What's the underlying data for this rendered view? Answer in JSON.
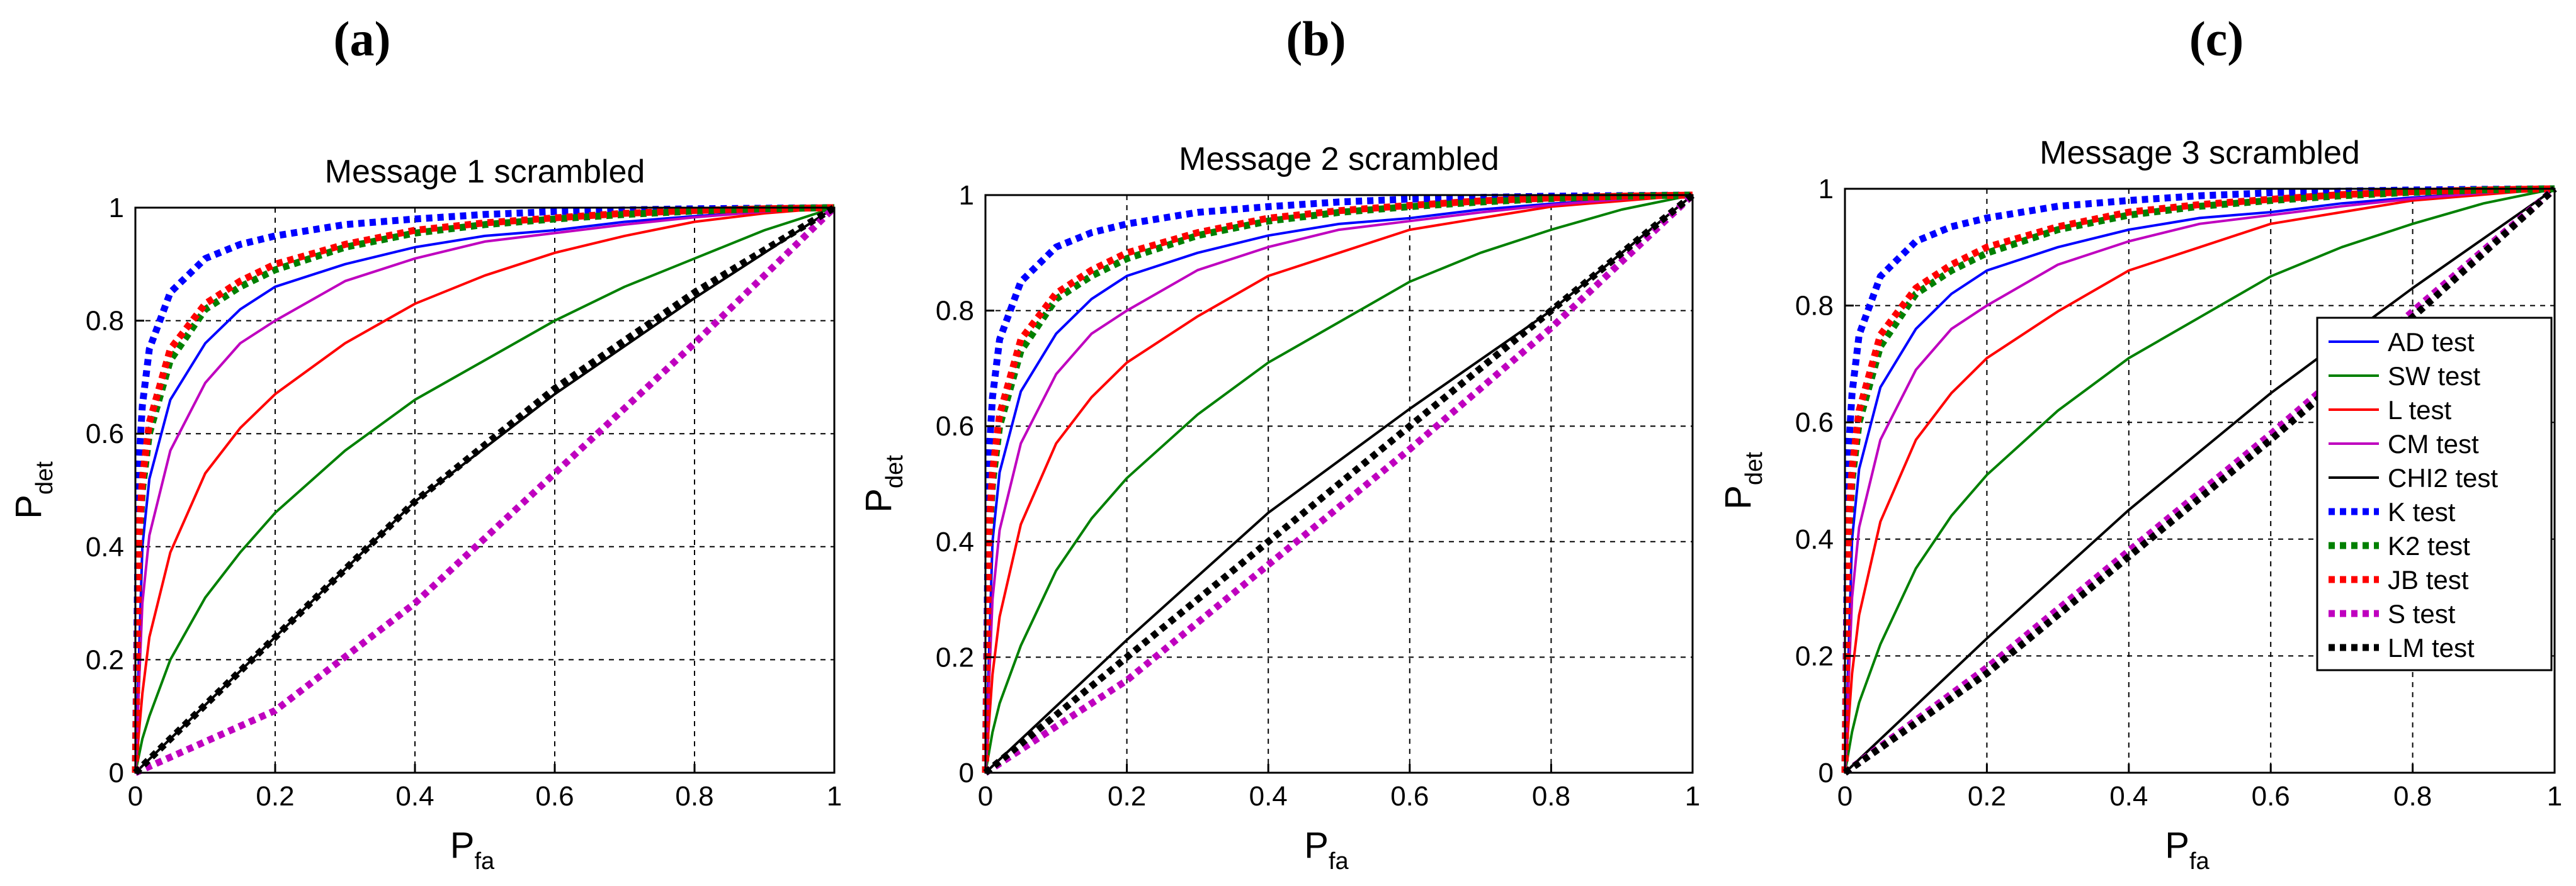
{
  "panel_labels": [
    "(a)",
    "(b)",
    "(c)"
  ],
  "chart_data": [
    {
      "type": "line",
      "title": "Message 1 scrambled",
      "xlabel": {
        "main": "P",
        "sub": "fa"
      },
      "ylabel": {
        "main": "P",
        "sub": "det"
      },
      "xlim": [
        0,
        1
      ],
      "ylim": [
        0,
        1
      ],
      "xticks": [
        "0",
        "0.2",
        "0.4",
        "0.6",
        "0.8",
        "1"
      ],
      "yticks": [
        "0",
        "0.2",
        "0.4",
        "0.6",
        "0.8",
        "1"
      ],
      "grid": true,
      "legend": null,
      "series": [
        {
          "name": "AD test",
          "color": "#0000ff",
          "dash": "solid",
          "x": [
            0,
            0.01,
            0.02,
            0.05,
            0.1,
            0.15,
            0.2,
            0.3,
            0.4,
            0.5,
            0.6,
            0.7,
            0.8,
            0.9,
            1
          ],
          "y": [
            0,
            0.4,
            0.52,
            0.66,
            0.76,
            0.82,
            0.86,
            0.9,
            0.93,
            0.95,
            0.96,
            0.975,
            0.985,
            0.993,
            1
          ]
        },
        {
          "name": "SW test",
          "color": "#008000",
          "dash": "solid",
          "x": [
            0,
            0.01,
            0.02,
            0.05,
            0.1,
            0.15,
            0.2,
            0.3,
            0.4,
            0.5,
            0.6,
            0.7,
            0.8,
            0.9,
            1
          ],
          "y": [
            0,
            0.06,
            0.1,
            0.2,
            0.31,
            0.39,
            0.46,
            0.57,
            0.66,
            0.73,
            0.8,
            0.86,
            0.91,
            0.96,
            1
          ]
        },
        {
          "name": "L test",
          "color": "#ff0000",
          "dash": "solid",
          "x": [
            0,
            0.01,
            0.02,
            0.05,
            0.1,
            0.15,
            0.2,
            0.3,
            0.4,
            0.5,
            0.6,
            0.7,
            0.8,
            0.9,
            1
          ],
          "y": [
            0,
            0.14,
            0.24,
            0.39,
            0.53,
            0.61,
            0.67,
            0.76,
            0.83,
            0.88,
            0.92,
            0.95,
            0.975,
            0.99,
            1
          ]
        },
        {
          "name": "CM test",
          "color": "#bf00bf",
          "dash": "solid",
          "x": [
            0,
            0.01,
            0.02,
            0.05,
            0.1,
            0.15,
            0.2,
            0.3,
            0.4,
            0.5,
            0.6,
            0.7,
            0.8,
            0.9,
            1
          ],
          "y": [
            0,
            0.3,
            0.42,
            0.57,
            0.69,
            0.76,
            0.8,
            0.87,
            0.91,
            0.94,
            0.955,
            0.97,
            0.983,
            0.993,
            1
          ]
        },
        {
          "name": "CHI2 test",
          "color": "#000000",
          "dash": "solid",
          "x": [
            0,
            0.2,
            0.4,
            0.6,
            0.8,
            1
          ],
          "y": [
            0,
            0.24,
            0.48,
            0.67,
            0.84,
            1
          ]
        },
        {
          "name": "K test",
          "color": "#0000ff",
          "dash": "dotted",
          "x": [
            0,
            0.005,
            0.01,
            0.02,
            0.05,
            0.1,
            0.15,
            0.2,
            0.3,
            0.4,
            0.5,
            0.6,
            0.7,
            0.8,
            0.9,
            1
          ],
          "y": [
            0,
            0.55,
            0.65,
            0.75,
            0.85,
            0.91,
            0.935,
            0.95,
            0.97,
            0.98,
            0.988,
            0.993,
            0.996,
            0.998,
            0.999,
            1
          ]
        },
        {
          "name": "K2 test",
          "color": "#008000",
          "dash": "dotted",
          "x": [
            0,
            0.005,
            0.01,
            0.02,
            0.05,
            0.1,
            0.15,
            0.2,
            0.3,
            0.4,
            0.5,
            0.6,
            0.7,
            0.8,
            0.9,
            1
          ],
          "y": [
            0,
            0.4,
            0.5,
            0.6,
            0.73,
            0.82,
            0.86,
            0.89,
            0.93,
            0.955,
            0.97,
            0.98,
            0.988,
            0.994,
            0.998,
            1
          ]
        },
        {
          "name": "JB test",
          "color": "#ff0000",
          "dash": "dotted",
          "x": [
            0,
            0.005,
            0.01,
            0.02,
            0.05,
            0.1,
            0.15,
            0.2,
            0.3,
            0.4,
            0.5,
            0.6,
            0.7,
            0.8,
            0.9,
            1
          ],
          "y": [
            0,
            0.42,
            0.52,
            0.62,
            0.75,
            0.83,
            0.87,
            0.9,
            0.935,
            0.96,
            0.973,
            0.982,
            0.99,
            0.995,
            0.998,
            1
          ]
        },
        {
          "name": "S test",
          "color": "#bf00bf",
          "dash": "dotted",
          "x": [
            0,
            0.2,
            0.4,
            0.6,
            0.8,
            1
          ],
          "y": [
            0,
            0.11,
            0.3,
            0.53,
            0.76,
            1
          ]
        },
        {
          "name": "LM test",
          "color": "#000000",
          "dash": "dotted",
          "x": [
            0,
            0.2,
            0.4,
            0.6,
            0.8,
            1
          ],
          "y": [
            0,
            0.24,
            0.48,
            0.68,
            0.85,
            1
          ]
        }
      ]
    },
    {
      "type": "line",
      "title": "Message 2 scrambled",
      "xlabel": {
        "main": "P",
        "sub": "fa"
      },
      "ylabel": {
        "main": "P",
        "sub": "det"
      },
      "xlim": [
        0,
        1
      ],
      "ylim": [
        0,
        1
      ],
      "xticks": [
        "0",
        "0.2",
        "0.4",
        "0.6",
        "0.8",
        "1"
      ],
      "yticks": [
        "0",
        "0.2",
        "0.4",
        "0.6",
        "0.8",
        "1"
      ],
      "grid": true,
      "legend": null,
      "series": [
        {
          "name": "AD test",
          "color": "#0000ff",
          "dash": "solid",
          "x": [
            0,
            0.01,
            0.02,
            0.05,
            0.1,
            0.15,
            0.2,
            0.3,
            0.4,
            0.5,
            0.6,
            0.7,
            0.8,
            0.9,
            1
          ],
          "y": [
            0,
            0.4,
            0.52,
            0.66,
            0.76,
            0.82,
            0.86,
            0.9,
            0.93,
            0.95,
            0.96,
            0.975,
            0.985,
            0.993,
            1
          ]
        },
        {
          "name": "SW test",
          "color": "#008000",
          "dash": "solid",
          "x": [
            0,
            0.01,
            0.02,
            0.05,
            0.1,
            0.15,
            0.2,
            0.3,
            0.4,
            0.5,
            0.6,
            0.7,
            0.8,
            0.9,
            1
          ],
          "y": [
            0,
            0.07,
            0.12,
            0.22,
            0.35,
            0.44,
            0.51,
            0.62,
            0.71,
            0.78,
            0.85,
            0.9,
            0.94,
            0.975,
            1
          ]
        },
        {
          "name": "L test",
          "color": "#ff0000",
          "dash": "solid",
          "x": [
            0,
            0.01,
            0.02,
            0.05,
            0.1,
            0.15,
            0.2,
            0.3,
            0.4,
            0.5,
            0.6,
            0.7,
            0.8,
            0.9,
            1
          ],
          "y": [
            0,
            0.17,
            0.27,
            0.43,
            0.57,
            0.65,
            0.71,
            0.79,
            0.86,
            0.9,
            0.94,
            0.96,
            0.98,
            0.99,
            1
          ]
        },
        {
          "name": "CM test",
          "color": "#bf00bf",
          "dash": "solid",
          "x": [
            0,
            0.01,
            0.02,
            0.05,
            0.1,
            0.15,
            0.2,
            0.3,
            0.4,
            0.5,
            0.6,
            0.7,
            0.8,
            0.9,
            1
          ],
          "y": [
            0,
            0.3,
            0.42,
            0.57,
            0.69,
            0.76,
            0.8,
            0.87,
            0.91,
            0.94,
            0.955,
            0.97,
            0.983,
            0.993,
            1
          ]
        },
        {
          "name": "CHI2 test",
          "color": "#000000",
          "dash": "solid",
          "x": [
            0,
            0.2,
            0.4,
            0.6,
            0.8,
            1
          ],
          "y": [
            0,
            0.23,
            0.45,
            0.63,
            0.8,
            1
          ]
        },
        {
          "name": "K test",
          "color": "#0000ff",
          "dash": "dotted",
          "x": [
            0,
            0.005,
            0.01,
            0.02,
            0.05,
            0.1,
            0.15,
            0.2,
            0.3,
            0.4,
            0.5,
            0.6,
            0.7,
            0.8,
            0.9,
            1
          ],
          "y": [
            0,
            0.55,
            0.65,
            0.75,
            0.85,
            0.91,
            0.935,
            0.95,
            0.97,
            0.98,
            0.988,
            0.993,
            0.996,
            0.998,
            0.999,
            1
          ]
        },
        {
          "name": "K2 test",
          "color": "#008000",
          "dash": "dotted",
          "x": [
            0,
            0.005,
            0.01,
            0.02,
            0.05,
            0.1,
            0.15,
            0.2,
            0.3,
            0.4,
            0.5,
            0.6,
            0.7,
            0.8,
            0.9,
            1
          ],
          "y": [
            0,
            0.4,
            0.5,
            0.6,
            0.73,
            0.82,
            0.86,
            0.89,
            0.93,
            0.955,
            0.97,
            0.98,
            0.988,
            0.994,
            0.998,
            1
          ]
        },
        {
          "name": "JB test",
          "color": "#ff0000",
          "dash": "dotted",
          "x": [
            0,
            0.005,
            0.01,
            0.02,
            0.05,
            0.1,
            0.15,
            0.2,
            0.3,
            0.4,
            0.5,
            0.6,
            0.7,
            0.8,
            0.9,
            1
          ],
          "y": [
            0,
            0.42,
            0.52,
            0.62,
            0.75,
            0.83,
            0.87,
            0.9,
            0.935,
            0.96,
            0.973,
            0.982,
            0.99,
            0.995,
            0.998,
            1
          ]
        },
        {
          "name": "S test",
          "color": "#bf00bf",
          "dash": "dotted",
          "x": [
            0,
            0.2,
            0.4,
            0.6,
            0.8,
            1
          ],
          "y": [
            0,
            0.16,
            0.36,
            0.56,
            0.77,
            1
          ]
        },
        {
          "name": "LM test",
          "color": "#000000",
          "dash": "dotted",
          "x": [
            0,
            0.2,
            0.4,
            0.6,
            0.8,
            1
          ],
          "y": [
            0,
            0.2,
            0.4,
            0.6,
            0.8,
            1
          ]
        }
      ]
    },
    {
      "type": "line",
      "title": "Message 3 scrambled",
      "xlabel": {
        "main": "P",
        "sub": "fa"
      },
      "ylabel": {
        "main": "P",
        "sub": "det"
      },
      "xlim": [
        0,
        1
      ],
      "ylim": [
        0,
        1
      ],
      "xticks": [
        "0",
        "0.2",
        "0.4",
        "0.6",
        "0.8",
        "1"
      ],
      "yticks": [
        "0",
        "0.2",
        "0.4",
        "0.6",
        "0.8",
        "1"
      ],
      "grid": true,
      "legend": "right",
      "series": [
        {
          "name": "AD test",
          "color": "#0000ff",
          "dash": "solid",
          "x": [
            0,
            0.01,
            0.02,
            0.05,
            0.1,
            0.15,
            0.2,
            0.3,
            0.4,
            0.5,
            0.6,
            0.7,
            0.8,
            0.9,
            1
          ],
          "y": [
            0,
            0.4,
            0.52,
            0.66,
            0.76,
            0.82,
            0.86,
            0.9,
            0.93,
            0.95,
            0.96,
            0.975,
            0.985,
            0.993,
            1
          ]
        },
        {
          "name": "SW test",
          "color": "#008000",
          "dash": "solid",
          "x": [
            0,
            0.01,
            0.02,
            0.05,
            0.1,
            0.15,
            0.2,
            0.3,
            0.4,
            0.5,
            0.6,
            0.7,
            0.8,
            0.9,
            1
          ],
          "y": [
            0,
            0.07,
            0.12,
            0.22,
            0.35,
            0.44,
            0.51,
            0.62,
            0.71,
            0.78,
            0.85,
            0.9,
            0.94,
            0.975,
            1
          ]
        },
        {
          "name": "L test",
          "color": "#ff0000",
          "dash": "solid",
          "x": [
            0,
            0.01,
            0.02,
            0.05,
            0.1,
            0.15,
            0.2,
            0.3,
            0.4,
            0.5,
            0.6,
            0.7,
            0.8,
            0.9,
            1
          ],
          "y": [
            0,
            0.17,
            0.27,
            0.43,
            0.57,
            0.65,
            0.71,
            0.79,
            0.86,
            0.9,
            0.94,
            0.96,
            0.98,
            0.99,
            1
          ]
        },
        {
          "name": "CM test",
          "color": "#bf00bf",
          "dash": "solid",
          "x": [
            0,
            0.01,
            0.02,
            0.05,
            0.1,
            0.15,
            0.2,
            0.3,
            0.4,
            0.5,
            0.6,
            0.7,
            0.8,
            0.9,
            1
          ],
          "y": [
            0,
            0.3,
            0.42,
            0.57,
            0.69,
            0.76,
            0.8,
            0.87,
            0.91,
            0.94,
            0.955,
            0.97,
            0.983,
            0.993,
            1
          ]
        },
        {
          "name": "CHI2 test",
          "color": "#000000",
          "dash": "solid",
          "x": [
            0,
            0.2,
            0.4,
            0.6,
            0.8,
            1
          ],
          "y": [
            0,
            0.23,
            0.45,
            0.65,
            0.83,
            1
          ]
        },
        {
          "name": "K test",
          "color": "#0000ff",
          "dash": "dotted",
          "x": [
            0,
            0.005,
            0.01,
            0.02,
            0.05,
            0.1,
            0.15,
            0.2,
            0.3,
            0.4,
            0.5,
            0.6,
            0.7,
            0.8,
            0.9,
            1
          ],
          "y": [
            0,
            0.55,
            0.65,
            0.75,
            0.85,
            0.91,
            0.935,
            0.95,
            0.97,
            0.98,
            0.988,
            0.993,
            0.996,
            0.998,
            0.999,
            1
          ]
        },
        {
          "name": "K2 test",
          "color": "#008000",
          "dash": "dotted",
          "x": [
            0,
            0.005,
            0.01,
            0.02,
            0.05,
            0.1,
            0.15,
            0.2,
            0.3,
            0.4,
            0.5,
            0.6,
            0.7,
            0.8,
            0.9,
            1
          ],
          "y": [
            0,
            0.4,
            0.5,
            0.6,
            0.73,
            0.82,
            0.86,
            0.89,
            0.93,
            0.955,
            0.97,
            0.98,
            0.988,
            0.994,
            0.998,
            1
          ]
        },
        {
          "name": "JB test",
          "color": "#ff0000",
          "dash": "dotted",
          "x": [
            0,
            0.005,
            0.01,
            0.02,
            0.05,
            0.1,
            0.15,
            0.2,
            0.3,
            0.4,
            0.5,
            0.6,
            0.7,
            0.8,
            0.9,
            1
          ],
          "y": [
            0,
            0.42,
            0.52,
            0.62,
            0.75,
            0.83,
            0.87,
            0.9,
            0.935,
            0.96,
            0.973,
            0.982,
            0.99,
            0.995,
            0.998,
            1
          ]
        },
        {
          "name": "S test",
          "color": "#bf00bf",
          "dash": "dotted",
          "x": [
            0,
            0.2,
            0.4,
            0.6,
            0.8,
            1
          ],
          "y": [
            0,
            0.18,
            0.38,
            0.58,
            0.79,
            1
          ]
        },
        {
          "name": "LM test",
          "color": "#000000",
          "dash": "dotted",
          "x": [
            0,
            0.2,
            0.4,
            0.6,
            0.8,
            1
          ],
          "y": [
            0,
            0.17,
            0.37,
            0.57,
            0.78,
            1
          ]
        }
      ]
    }
  ]
}
